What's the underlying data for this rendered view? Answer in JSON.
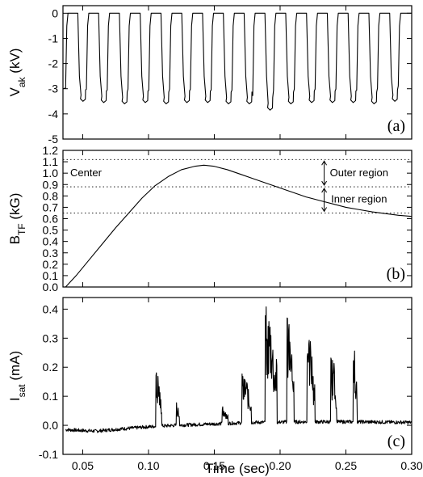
{
  "chart_data": [
    {
      "type": "line",
      "panel": "(a)",
      "ylabel": {
        "main": "V",
        "sub": "ak",
        "unit": " (kV)"
      },
      "ylim": [
        -5,
        0.3
      ],
      "yticks": [
        0,
        -1,
        -2,
        -3,
        -4,
        -5
      ],
      "xlim": [
        0.035,
        0.3
      ],
      "pulses": {
        "starts": [
          0.037,
          0.0528,
          0.0686,
          0.0844,
          0.1002,
          0.116,
          0.1318,
          0.1476,
          0.1634,
          0.1792,
          0.195,
          0.2108,
          0.2266,
          0.2424,
          0.2582,
          0.274,
          0.2898
        ],
        "high_kV": 0.0,
        "low_kV": [
          -3.5,
          -3.55,
          -3.6,
          -3.55,
          -3.6,
          -3.55,
          -3.55,
          -3.6,
          -3.6,
          -3.85,
          -3.6,
          -3.55,
          -3.55,
          -3.55,
          -3.6,
          -3.5,
          -3.4
        ],
        "on_duration_s": 0.0105,
        "period_s": 0.0158
      }
    },
    {
      "type": "line",
      "panel": "(b)",
      "ylabel": {
        "main": "B",
        "sub": "TF",
        "unit": " (kG)"
      },
      "ylim": [
        0,
        1.2
      ],
      "yticks": [
        0.0,
        0.1,
        0.2,
        0.3,
        0.4,
        0.5,
        0.6,
        0.7,
        0.8,
        0.9,
        1.0,
        1.1,
        1.2
      ],
      "ytick_labels": [
        "0.0",
        "0.1",
        "0.2",
        "0.3",
        "0.4",
        "0.5",
        "0.6",
        "0.7",
        "0.8",
        "0.9",
        "1.0",
        "1.1",
        "1.2"
      ],
      "xlim": [
        0.035,
        0.3
      ],
      "x": [
        0.037,
        0.045,
        0.055,
        0.065,
        0.075,
        0.085,
        0.095,
        0.105,
        0.115,
        0.125,
        0.135,
        0.142,
        0.15,
        0.16,
        0.17,
        0.18,
        0.19,
        0.2,
        0.21,
        0.22,
        0.23,
        0.24,
        0.25,
        0.26,
        0.27,
        0.28,
        0.29,
        0.3
      ],
      "y": [
        0.0,
        0.1,
        0.24,
        0.38,
        0.52,
        0.65,
        0.78,
        0.89,
        0.97,
        1.03,
        1.06,
        1.07,
        1.06,
        1.03,
        0.99,
        0.95,
        0.91,
        0.87,
        0.83,
        0.79,
        0.76,
        0.73,
        0.7,
        0.68,
        0.66,
        0.645,
        0.63,
        0.62
      ],
      "reference_lines": [
        1.12,
        0.88,
        0.65
      ],
      "annotations": {
        "center": "Center",
        "outer": "Outer region",
        "inner": "Inner region"
      }
    },
    {
      "type": "line",
      "panel": "(c)",
      "ylabel": {
        "main": "I",
        "sub": "sat",
        "unit": " (mA)"
      },
      "ylim": [
        -0.1,
        0.44
      ],
      "yticks": [
        -0.1,
        0.0,
        0.1,
        0.2,
        0.3,
        0.4
      ],
      "ytick_labels": [
        "-0.1",
        "0.0",
        "0.1",
        "0.2",
        "0.3",
        "0.4"
      ],
      "xlabel": "Time (sec)",
      "xlim": [
        0.035,
        0.3
      ],
      "xticks": [
        0.05,
        0.1,
        0.15,
        0.2,
        0.25,
        0.3
      ],
      "xtick_labels": [
        "0.05",
        "0.10",
        "0.15",
        "0.20",
        "0.25",
        "0.30"
      ],
      "baseline": {
        "x": [
          0.037,
          0.06,
          0.08,
          0.1,
          0.12,
          0.15,
          0.18,
          0.22,
          0.26,
          0.3
        ],
        "y": [
          -0.015,
          -0.02,
          -0.012,
          -0.005,
          0.0,
          0.005,
          0.01,
          0.012,
          0.012,
          0.01
        ]
      },
      "bursts": [
        {
          "start": 0.1055,
          "end": 0.11,
          "peak": 0.19
        },
        {
          "start": 0.121,
          "end": 0.1235,
          "peak": 0.08
        },
        {
          "start": 0.156,
          "end": 0.1605,
          "peak": 0.06
        },
        {
          "start": 0.171,
          "end": 0.178,
          "peak": 0.17
        },
        {
          "start": 0.1885,
          "end": 0.1975,
          "peak": 0.4
        },
        {
          "start": 0.205,
          "end": 0.2105,
          "peak": 0.41
        },
        {
          "start": 0.2205,
          "end": 0.2265,
          "peak": 0.3
        },
        {
          "start": 0.2385,
          "end": 0.243,
          "peak": 0.23
        },
        {
          "start": 0.2555,
          "end": 0.2585,
          "peak": 0.26
        }
      ]
    }
  ]
}
